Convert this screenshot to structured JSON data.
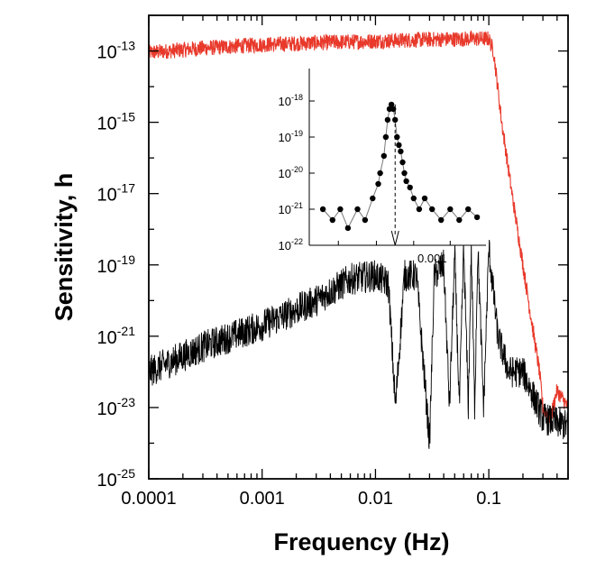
{
  "chart_data": [
    {
      "type": "line",
      "title": "",
      "xlabel": "Frequency (Hz)",
      "ylabel": "Sensitivity, h",
      "x_scale": "log",
      "y_scale": "log",
      "xlim": [
        0.0001,
        0.5
      ],
      "ylim": [
        1e-25,
        1e-12
      ],
      "grid": false,
      "legend": "none",
      "x_ticks": [
        {
          "value": 0.0001,
          "label": "0.0001"
        },
        {
          "value": 0.001,
          "label": "0.001"
        },
        {
          "value": 0.01,
          "label": "0.01"
        },
        {
          "value": 0.1,
          "label": "0.1"
        }
      ],
      "y_ticks": [
        {
          "value": 1e-13,
          "base": "10",
          "exp": "-13"
        },
        {
          "value": 1e-15,
          "base": "10",
          "exp": "-15"
        },
        {
          "value": 1e-17,
          "base": "10",
          "exp": "-17"
        },
        {
          "value": 1e-19,
          "base": "10",
          "exp": "-19"
        },
        {
          "value": 1e-21,
          "base": "10",
          "exp": "-21"
        },
        {
          "value": 1e-23,
          "base": "10",
          "exp": "-23"
        },
        {
          "value": 1e-25,
          "base": "10",
          "exp": "-25"
        }
      ],
      "series": [
        {
          "color": "#e8392b",
          "x": [
            0.0001,
            0.00015,
            0.0003,
            0.001,
            0.003,
            0.01,
            0.03,
            0.07,
            0.1,
            0.11,
            0.13,
            0.16,
            0.2,
            0.25,
            0.28,
            0.3,
            0.35,
            0.4,
            0.5
          ],
          "y": [
            9e-14,
            1e-13,
            1.2e-13,
            1.5e-13,
            1.7e-13,
            1.9e-13,
            2.1e-13,
            2.2e-13,
            2.2e-13,
            1e-13,
            1e-15,
            1e-17,
            1e-19,
            1e-21,
            1e-22,
            1e-23,
            5e-24,
            3e-23,
            1e-23
          ]
        },
        {
          "color": "#000000",
          "x": [
            0.0001,
            0.0003,
            0.001,
            0.003,
            0.006,
            0.01,
            0.013,
            0.015,
            0.018,
            0.023,
            0.03,
            0.033,
            0.04,
            0.045,
            0.05,
            0.055,
            0.06,
            0.066,
            0.07,
            0.075,
            0.08,
            0.09,
            0.1,
            0.12,
            0.15,
            0.2,
            0.3,
            0.5
          ],
          "y": [
            1e-22,
            5e-22,
            2e-21,
            1e-20,
            4e-20,
            5e-20,
            3e-20,
            1e-23,
            5e-20,
            5e-20,
            1e-24,
            5e-20,
            1e-19,
            1e-23,
            2e-19,
            1e-23,
            3e-19,
            1e-23,
            3e-19,
            1e-23,
            3e-19,
            1e-23,
            3e-19,
            1e-21,
            1e-22,
            1e-22,
            5e-24,
            3e-24
          ]
        }
      ]
    },
    {
      "type": "scatter",
      "title": "",
      "xlabel": "",
      "ylabel": "",
      "x_scale": "log",
      "y_scale": "log",
      "ylim": [
        1e-22,
        1e-17
      ],
      "x_ticks": [
        {
          "value": 0.001,
          "label": "0.001"
        }
      ],
      "y_ticks": [
        {
          "value": 1e-18,
          "base": "10",
          "exp": "-18"
        },
        {
          "value": 1e-19,
          "base": "10",
          "exp": "-19"
        },
        {
          "value": 1e-20,
          "base": "10",
          "exp": "-20"
        },
        {
          "value": 1e-21,
          "base": "10",
          "exp": "-21"
        },
        {
          "value": 1e-22,
          "base": "10",
          "exp": "-22"
        }
      ],
      "marker_frequency": 0.00097,
      "series": [
        {
          "color": "#000000",
          "x": [
            0.000932,
            0.000937,
            0.000941,
            0.000945,
            0.00095,
            0.000954,
            0.000958,
            0.000961,
            0.000962,
            0.000964,
            0.000965,
            0.000966,
            0.000967,
            0.000968,
            0.000969,
            0.00097,
            0.000971,
            0.000972,
            0.000973,
            0.000974,
            0.000975,
            0.000976,
            0.000978,
            0.00098,
            0.000983,
            0.000986,
            0.00099,
            0.000995,
            0.001,
            0.001005,
            0.00101,
            0.001015
          ],
          "y": [
            1e-21,
            5e-22,
            1e-21,
            3e-22,
            1e-21,
            5e-22,
            2e-21,
            5e-21,
            1e-20,
            3e-20,
            1e-19,
            3e-19,
            6e-19,
            8e-19,
            6e-19,
            3e-19,
            1e-19,
            6e-20,
            4e-20,
            2e-20,
            1e-20,
            6e-21,
            4e-21,
            2e-21,
            1e-21,
            2e-21,
            1e-21,
            5e-22,
            1e-21,
            5e-22,
            1e-21,
            6e-22
          ]
        }
      ]
    }
  ]
}
